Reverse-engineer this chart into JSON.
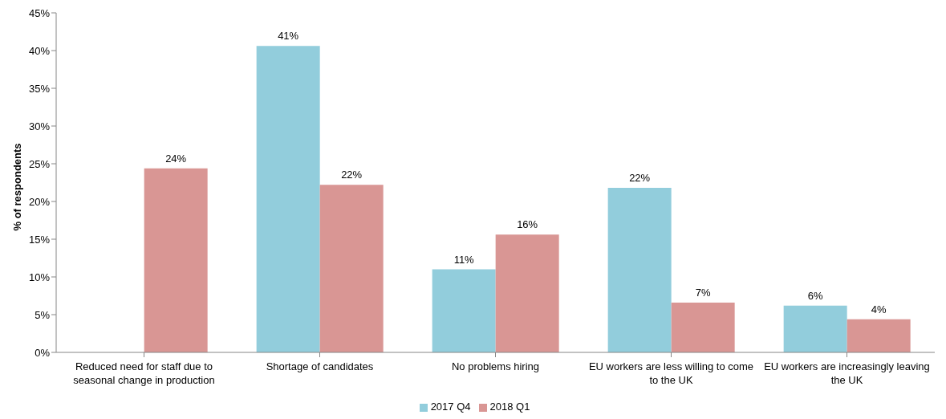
{
  "chart_data": {
    "type": "bar",
    "ylabel": "% of respondents",
    "categories": [
      "Reduced need for staff due to seasonal change in production",
      "Shortage of candidates",
      "No problems hiring",
      "EU workers are less willing to come to the UK",
      "EU workers are increasingly leaving the UK"
    ],
    "series": [
      {
        "name": "2017 Q4",
        "color": "#92cddc",
        "values": [
          null,
          40.6,
          11,
          21.8,
          6.2
        ],
        "value_labels": [
          null,
          "41%",
          "11%",
          "22%",
          "6%"
        ]
      },
      {
        "name": "2018 Q1",
        "color": "#d99694",
        "values": [
          24.4,
          22.2,
          15.6,
          6.6,
          4.4
        ],
        "value_labels": [
          "24%",
          "22%",
          "16%",
          "7%",
          "4%"
        ]
      }
    ],
    "ylim": [
      0,
      45
    ],
    "yticks": [
      {
        "value": 0,
        "label": "0%"
      },
      {
        "value": 5,
        "label": "5%"
      },
      {
        "value": 10,
        "label": "10%"
      },
      {
        "value": 15,
        "label": "15%"
      },
      {
        "value": 20,
        "label": "20%"
      },
      {
        "value": 25,
        "label": "25%"
      },
      {
        "value": 30,
        "label": "30%"
      },
      {
        "value": 35,
        "label": "35%"
      },
      {
        "value": 40,
        "label": "40%"
      },
      {
        "value": 45,
        "label": "45%"
      }
    ],
    "grid": false,
    "legend": "bottom"
  }
}
